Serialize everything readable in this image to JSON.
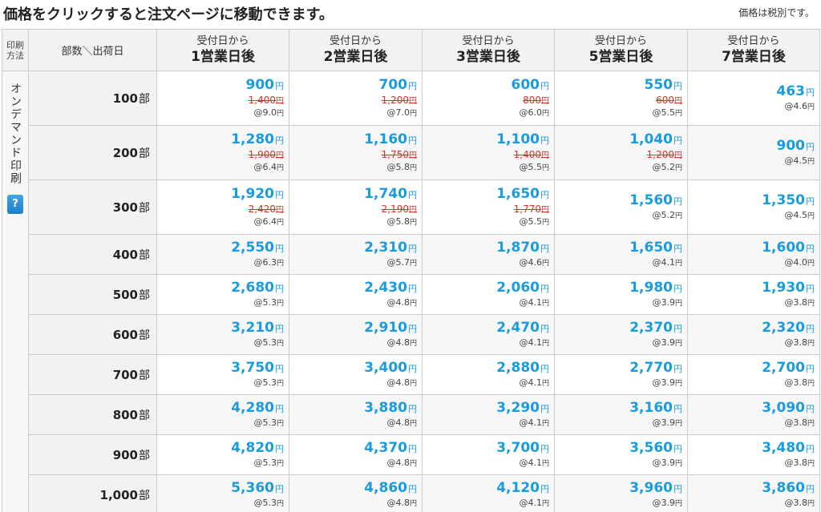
{
  "headline": "価格をクリックすると注文ページに移動できます。",
  "tax_note": "価格は税別です。",
  "header": {
    "method": "印刷方法",
    "qty": "部数＼出荷日",
    "days": [
      {
        "top": "受付日から",
        "bottom": "1営業日後"
      },
      {
        "top": "受付日から",
        "bottom": "2営業日後"
      },
      {
        "top": "受付日から",
        "bottom": "3営業日後"
      },
      {
        "top": "受付日から",
        "bottom": "5営業日後"
      },
      {
        "top": "受付日から",
        "bottom": "7営業日後"
      }
    ]
  },
  "method_label": "オンデマンド印刷",
  "help_label": "?",
  "currency": "円",
  "unit_prefix": "@",
  "qty_suffix": "部",
  "colors": {
    "price": "#1a9be0",
    "strike": "#d9302c",
    "help": "#1b7fc8"
  },
  "rows": [
    {
      "qty": "100",
      "cells": [
        {
          "price": "900",
          "old": "1,400",
          "unit": "9.0"
        },
        {
          "price": "700",
          "old": "1,200",
          "unit": "7.0"
        },
        {
          "price": "600",
          "old": "800",
          "unit": "6.0"
        },
        {
          "price": "550",
          "old": "600",
          "unit": "5.5"
        },
        {
          "price": "463",
          "unit": "4.6"
        }
      ]
    },
    {
      "qty": "200",
      "cells": [
        {
          "price": "1,280",
          "old": "1,900",
          "unit": "6.4"
        },
        {
          "price": "1,160",
          "old": "1,750",
          "unit": "5.8"
        },
        {
          "price": "1,100",
          "old": "1,400",
          "unit": "5.5"
        },
        {
          "price": "1,040",
          "old": "1,200",
          "unit": "5.2"
        },
        {
          "price": "900",
          "unit": "4.5"
        }
      ]
    },
    {
      "qty": "300",
      "cells": [
        {
          "price": "1,920",
          "old": "2,420",
          "unit": "6.4"
        },
        {
          "price": "1,740",
          "old": "2,190",
          "unit": "5.8"
        },
        {
          "price": "1,650",
          "old": "1,770",
          "unit": "5.5"
        },
        {
          "price": "1,560",
          "unit": "5.2"
        },
        {
          "price": "1,350",
          "unit": "4.5"
        }
      ]
    },
    {
      "qty": "400",
      "cells": [
        {
          "price": "2,550",
          "unit": "6.3"
        },
        {
          "price": "2,310",
          "unit": "5.7"
        },
        {
          "price": "1,870",
          "unit": "4.6"
        },
        {
          "price": "1,650",
          "unit": "4.1"
        },
        {
          "price": "1,600",
          "unit": "4.0"
        }
      ]
    },
    {
      "qty": "500",
      "cells": [
        {
          "price": "2,680",
          "unit": "5.3"
        },
        {
          "price": "2,430",
          "unit": "4.8"
        },
        {
          "price": "2,060",
          "unit": "4.1"
        },
        {
          "price": "1,980",
          "unit": "3.9"
        },
        {
          "price": "1,930",
          "unit": "3.8"
        }
      ]
    },
    {
      "qty": "600",
      "cells": [
        {
          "price": "3,210",
          "unit": "5.3"
        },
        {
          "price": "2,910",
          "unit": "4.8"
        },
        {
          "price": "2,470",
          "unit": "4.1"
        },
        {
          "price": "2,370",
          "unit": "3.9"
        },
        {
          "price": "2,320",
          "unit": "3.8"
        }
      ]
    },
    {
      "qty": "700",
      "cells": [
        {
          "price": "3,750",
          "unit": "5.3"
        },
        {
          "price": "3,400",
          "unit": "4.8"
        },
        {
          "price": "2,880",
          "unit": "4.1"
        },
        {
          "price": "2,770",
          "unit": "3.9"
        },
        {
          "price": "2,700",
          "unit": "3.8"
        }
      ]
    },
    {
      "qty": "800",
      "cells": [
        {
          "price": "4,280",
          "unit": "5.3"
        },
        {
          "price": "3,880",
          "unit": "4.8"
        },
        {
          "price": "3,290",
          "unit": "4.1"
        },
        {
          "price": "3,160",
          "unit": "3.9"
        },
        {
          "price": "3,090",
          "unit": "3.8"
        }
      ]
    },
    {
      "qty": "900",
      "cells": [
        {
          "price": "4,820",
          "unit": "5.3"
        },
        {
          "price": "4,370",
          "unit": "4.8"
        },
        {
          "price": "3,700",
          "unit": "4.1"
        },
        {
          "price": "3,560",
          "unit": "3.9"
        },
        {
          "price": "3,480",
          "unit": "3.8"
        }
      ]
    },
    {
      "qty": "1,000",
      "cells": [
        {
          "price": "5,360",
          "unit": "5.3"
        },
        {
          "price": "4,860",
          "unit": "4.8"
        },
        {
          "price": "4,120",
          "unit": "4.1"
        },
        {
          "price": "3,960",
          "unit": "3.9"
        },
        {
          "price": "3,860",
          "unit": "3.8"
        }
      ]
    }
  ]
}
